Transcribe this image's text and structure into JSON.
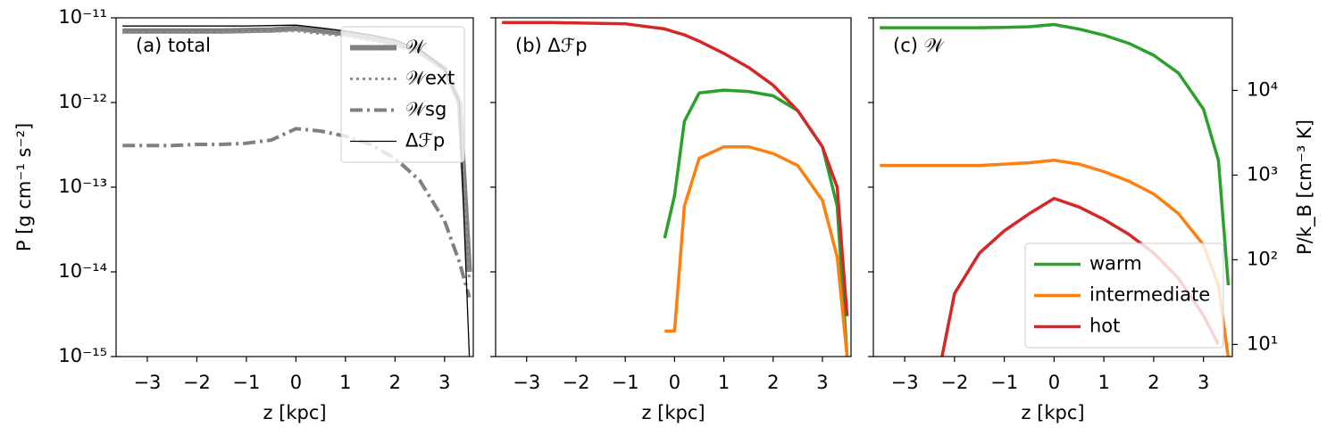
{
  "chart_data": [
    {
      "type": "line",
      "annotation": "(a) total",
      "xlabel": "z [kpc]",
      "ylabel": "P [g cm⁻¹ s⁻²]",
      "log_y": true,
      "show_ytick_labels": true,
      "legend": "upper right",
      "xlim": [
        -3.63,
        3.58
      ],
      "xticks": [
        {
          "value": -3,
          "label": "−3"
        },
        {
          "value": -2,
          "label": "−2"
        },
        {
          "value": -1,
          "label": "−1"
        },
        0,
        1,
        2,
        3
      ],
      "ylim": [
        1e-15,
        1e-11
      ],
      "yticks": [
        {
          "value": 1e-15,
          "label": "10⁻¹⁵"
        },
        {
          "value": 1e-14,
          "label": "10⁻¹⁴"
        },
        {
          "value": 1e-13,
          "label": "10⁻¹³"
        },
        {
          "value": 1e-12,
          "label": "10⁻¹²"
        },
        {
          "value": 1e-11,
          "label": "10⁻¹¹"
        }
      ],
      "x": [
        -3.5,
        -3,
        -2.5,
        -2,
        -1.5,
        -1,
        -0.5,
        0,
        0.5,
        1,
        1.5,
        2,
        2.5,
        3,
        3.3,
        3.5
      ],
      "series": [
        {
          "name": "𝒲",
          "color": "#808080",
          "width": 6,
          "dash": "none",
          "values": [
            7e-12,
            7e-12,
            7e-12,
            7e-12,
            7e-12,
            7.1e-12,
            7.2e-12,
            7.5e-12,
            7e-12,
            6.5e-12,
            5.8e-12,
            5e-12,
            4e-12,
            2.5e-12,
            1e-12,
            1e-14
          ]
        },
        {
          "name": "𝒲ext",
          "color": "#909090",
          "width": 3,
          "dash": "3 4",
          "values": [
            6.7e-12,
            6.7e-12,
            6.7e-12,
            6.7e-12,
            6.7e-12,
            6.8e-12,
            6.9e-12,
            7e-12,
            6.5e-12,
            6.1e-12,
            5.4e-12,
            4.7e-12,
            3.8e-12,
            2.4e-12,
            9e-13,
            8e-15
          ]
        },
        {
          "name": "𝒲sg",
          "color": "#808080",
          "width": 4,
          "dash": "14 5 3 5",
          "values": [
            3.1e-13,
            3.1e-13,
            3.1e-13,
            3.2e-13,
            3.2e-13,
            3.3e-13,
            3.6e-13,
            4.9e-13,
            4.6e-13,
            4e-13,
            3.2e-13,
            2.2e-13,
            1.2e-13,
            4e-14,
            1.3e-14,
            5e-15
          ]
        },
        {
          "name": "Δℱp",
          "color": "#000000",
          "width": 1.3,
          "dash": "none",
          "values": [
            8e-12,
            8e-12,
            8e-12,
            8e-12,
            8e-12,
            8e-12,
            8.1e-12,
            8.2e-12,
            7.6e-12,
            7e-12,
            6.3e-12,
            5.5e-12,
            4.2e-12,
            2.5e-12,
            1e-12,
            1e-15
          ]
        }
      ]
    },
    {
      "type": "line",
      "annotation": "(b) Δℱp",
      "xlabel": "z [kpc]",
      "log_y": true,
      "show_ytick_labels": false,
      "xlim": [
        -3.63,
        3.58
      ],
      "xticks": [
        {
          "value": -3,
          "label": "−3"
        },
        {
          "value": -2,
          "label": "−2"
        },
        {
          "value": -1,
          "label": "−1"
        },
        0,
        1,
        2,
        3
      ],
      "ylim": [
        1e-15,
        1e-11
      ],
      "yticks": [
        1e-15,
        1e-14,
        1e-13,
        1e-12,
        1e-11
      ],
      "x": [
        -3.5,
        -3,
        -2.5,
        -2,
        -1.5,
        -1,
        -0.5,
        -0.2,
        0,
        0.2,
        0.5,
        1,
        1.5,
        2,
        2.5,
        3,
        3.3,
        3.5
      ],
      "series": [
        {
          "color": "#2ca02c",
          "width": 3.5,
          "dash": "none",
          "values": [
            null,
            null,
            null,
            null,
            null,
            null,
            null,
            2.5e-14,
            8e-14,
            6e-13,
            1.3e-12,
            1.4e-12,
            1.35e-12,
            1.2e-12,
            8e-13,
            3e-13,
            6e-14,
            1e-15
          ]
        },
        {
          "color": "#ff7f0e",
          "width": 3.5,
          "dash": "none",
          "values": [
            null,
            null,
            null,
            null,
            null,
            null,
            null,
            2e-15,
            2e-15,
            6e-14,
            2.2e-13,
            3e-13,
            3e-13,
            2.5e-13,
            1.8e-13,
            7e-14,
            1.5e-14,
            1e-15
          ]
        },
        {
          "color": "#d62728",
          "width": 3.5,
          "dash": "none",
          "values": [
            8.8e-12,
            8.8e-12,
            8.8e-12,
            8.7e-12,
            8.6e-12,
            8.5e-12,
            7.8e-12,
            7.4e-12,
            6.8e-12,
            6.3e-12,
            5.3e-12,
            3.8e-12,
            2.6e-12,
            1.6e-12,
            8e-13,
            3e-13,
            1e-13,
            3e-15
          ]
        }
      ]
    },
    {
      "type": "line",
      "annotation": "(c) 𝒲",
      "xlabel": "z [kpc]",
      "y2label": "P/k_B [cm⁻³ K]",
      "log_y": true,
      "show_ytick_labels": false,
      "legend": "lower right",
      "xlim": [
        -3.63,
        3.58
      ],
      "xticks": [
        {
          "value": -3,
          "label": "−3"
        },
        {
          "value": -2,
          "label": "−2"
        },
        {
          "value": -1,
          "label": "−1"
        },
        0,
        1,
        2,
        3
      ],
      "ylim": [
        1e-15,
        1e-11
      ],
      "yticks": [
        1e-15,
        1e-14,
        1e-13,
        1e-12,
        1e-11
      ],
      "y2lim": [
        7.2,
        72000
      ],
      "y2ticks": [
        {
          "value": 10,
          "label": "10¹"
        },
        {
          "value": 100,
          "label": "10²"
        },
        {
          "value": 1000,
          "label": "10³"
        },
        {
          "value": 10000,
          "label": "10⁴"
        }
      ],
      "x": [
        -3.5,
        -3,
        -2.5,
        -2.25,
        -2,
        -1.5,
        -1,
        -0.5,
        0,
        0.5,
        1,
        1.5,
        2,
        2.5,
        3,
        3.3,
        3.5
      ],
      "series": [
        {
          "name": "warm",
          "color": "#2ca02c",
          "width": 3.5,
          "dash": "none",
          "axis": "y2",
          "values": [
            55000,
            55000,
            55000,
            55000,
            55000,
            55000,
            55500,
            56500,
            60000,
            53000,
            45000,
            36000,
            26000,
            16000,
            6000,
            1500,
            50
          ]
        },
        {
          "name": "intermediate",
          "color": "#ff7f0e",
          "width": 3.5,
          "dash": "none",
          "axis": "y2",
          "values": [
            1300,
            1300,
            1300,
            1300,
            1300,
            1300,
            1350,
            1400,
            1500,
            1350,
            1100,
            850,
            600,
            350,
            150,
            50,
            7
          ]
        },
        {
          "name": "hot",
          "color": "#d62728",
          "width": 3.5,
          "dash": "none",
          "axis": "y2",
          "values": [
            null,
            null,
            null,
            7.2,
            40,
            120,
            220,
            350,
            530,
            420,
            300,
            200,
            120,
            60,
            22,
            10,
            null
          ]
        }
      ]
    }
  ]
}
